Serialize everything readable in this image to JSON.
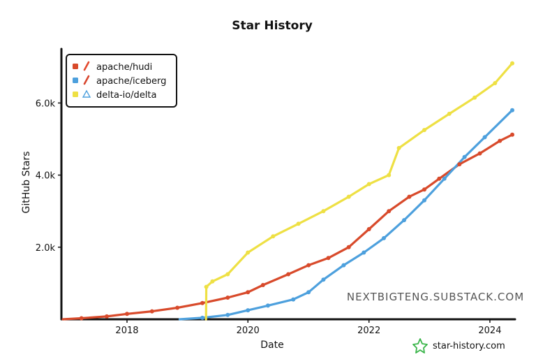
{
  "chart_data": {
    "type": "line",
    "title": "Star History",
    "xlabel": "Date",
    "ylabel": "GitHub Stars",
    "x_ticks": [
      "2018",
      "2020",
      "2022",
      "2024"
    ],
    "y_ticks": [
      "2.0k",
      "4.0k",
      "6.0k"
    ],
    "xlim": [
      "2016-12-01",
      "2024-06-01"
    ],
    "ylim": [
      0,
      7500
    ],
    "grid": false,
    "legend_position": "top-left",
    "series": [
      {
        "name": "apache/hudi",
        "color": "#d84a2b",
        "icon": "hudi-logo-icon",
        "points": [
          [
            "2016-12-10",
            0
          ],
          [
            "2017-04-01",
            30
          ],
          [
            "2017-09-01",
            80
          ],
          [
            "2018-01-01",
            150
          ],
          [
            "2018-06-01",
            220
          ],
          [
            "2018-11-01",
            320
          ],
          [
            "2019-04-01",
            450
          ],
          [
            "2019-09-01",
            600
          ],
          [
            "2020-01-01",
            750
          ],
          [
            "2020-04-01",
            950
          ],
          [
            "2020-09-01",
            1250
          ],
          [
            "2021-01-01",
            1500
          ],
          [
            "2021-05-01",
            1700
          ],
          [
            "2021-09-01",
            2000
          ],
          [
            "2022-01-01",
            2500
          ],
          [
            "2022-05-01",
            3000
          ],
          [
            "2022-09-01",
            3400
          ],
          [
            "2022-12-01",
            3600
          ],
          [
            "2023-03-01",
            3900
          ],
          [
            "2023-07-01",
            4300
          ],
          [
            "2023-11-01",
            4600
          ],
          [
            "2024-03-01",
            4950
          ],
          [
            "2024-05-15",
            5120
          ]
        ]
      },
      {
        "name": "apache/iceberg",
        "color": "#4da0dd",
        "icon": "iceberg-logo-icon",
        "points": [
          [
            "2018-11-15",
            0
          ],
          [
            "2019-04-01",
            40
          ],
          [
            "2019-09-01",
            120
          ],
          [
            "2020-01-01",
            250
          ],
          [
            "2020-05-01",
            380
          ],
          [
            "2020-10-01",
            550
          ],
          [
            "2021-01-01",
            750
          ],
          [
            "2021-04-01",
            1100
          ],
          [
            "2021-08-01",
            1500
          ],
          [
            "2021-12-01",
            1850
          ],
          [
            "2022-04-01",
            2250
          ],
          [
            "2022-08-01",
            2750
          ],
          [
            "2022-12-01",
            3300
          ],
          [
            "2023-04-01",
            3900
          ],
          [
            "2023-08-01",
            4500
          ],
          [
            "2023-12-01",
            5050
          ],
          [
            "2024-05-15",
            5800
          ]
        ]
      },
      {
        "name": "delta-io/delta",
        "color": "#eee044",
        "icon": "delta-logo-icon",
        "points": [
          [
            "2019-04-23",
            0
          ],
          [
            "2019-04-25",
            900
          ],
          [
            "2019-06-01",
            1050
          ],
          [
            "2019-09-01",
            1250
          ],
          [
            "2020-01-01",
            1850
          ],
          [
            "2020-06-01",
            2300
          ],
          [
            "2020-11-01",
            2650
          ],
          [
            "2021-04-01",
            3000
          ],
          [
            "2021-09-01",
            3400
          ],
          [
            "2022-01-01",
            3750
          ],
          [
            "2022-05-01",
            4000
          ],
          [
            "2022-07-01",
            4750
          ],
          [
            "2022-12-01",
            5250
          ],
          [
            "2023-05-01",
            5700
          ],
          [
            "2023-10-01",
            6150
          ],
          [
            "2024-02-01",
            6550
          ],
          [
            "2024-05-15",
            7100
          ]
        ]
      }
    ],
    "watermark": "NEXTBIGTENG.SUBSTACK.COM",
    "footer_brand": "star-history.com"
  }
}
